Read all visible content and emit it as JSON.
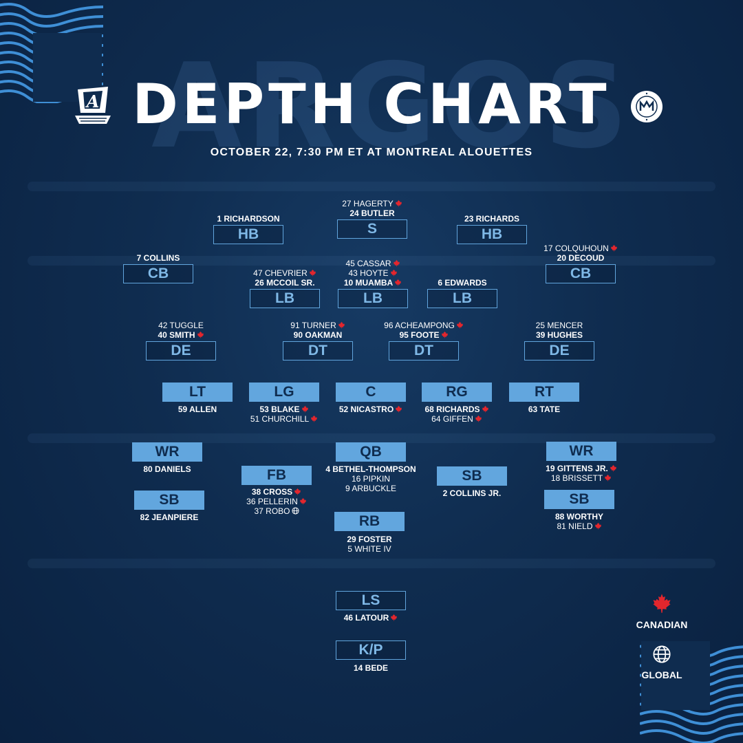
{
  "header": {
    "ghost_text": "ARGOS",
    "title": "DEPTH CHART",
    "subtitle": "OCTOBER 22, 7:30 PM ET AT MONTREAL ALOUETTES",
    "right_logo_text": "MONTREAL ALOUETTES"
  },
  "colors": {
    "accent": "#62a6de",
    "background": "#0f2c4f",
    "canadian_leaf": "#e3262d"
  },
  "defense": {
    "hb_left": {
      "label": "HB",
      "players": [
        {
          "text": "1 RICHARDSON",
          "starter": true,
          "flag": ""
        }
      ]
    },
    "safety": {
      "label": "S",
      "players": [
        {
          "text": "27 HAGERTY",
          "starter": false,
          "flag": "canadian"
        },
        {
          "text": "24 BUTLER",
          "starter": true,
          "flag": ""
        }
      ]
    },
    "hb_right": {
      "label": "HB",
      "players": [
        {
          "text": "23 RICHARDS",
          "starter": true,
          "flag": ""
        }
      ]
    },
    "cb_left": {
      "label": "CB",
      "players": [
        {
          "text": "7 COLLINS",
          "starter": true,
          "flag": ""
        }
      ]
    },
    "lb_left": {
      "label": "LB",
      "players": [
        {
          "text": "47 CHEVRIER",
          "starter": false,
          "flag": "canadian"
        },
        {
          "text": "26 MCCOIL SR.",
          "starter": true,
          "flag": ""
        }
      ]
    },
    "lb_middle": {
      "label": "LB",
      "players": [
        {
          "text": "45 CASSAR",
          "starter": false,
          "flag": "canadian"
        },
        {
          "text": "43 HOYTE",
          "starter": false,
          "flag": "canadian"
        },
        {
          "text": "10 MUAMBA",
          "starter": true,
          "flag": "canadian"
        }
      ]
    },
    "lb_right": {
      "label": "LB",
      "players": [
        {
          "text": "6 EDWARDS",
          "starter": true,
          "flag": ""
        }
      ]
    },
    "cb_right": {
      "label": "CB",
      "players": [
        {
          "text": "17 COLQUHOUN",
          "starter": false,
          "flag": "canadian"
        },
        {
          "text": "20 DECOUD",
          "starter": true,
          "flag": ""
        }
      ]
    },
    "de_left": {
      "label": "DE",
      "players": [
        {
          "text": "42 TUGGLE",
          "starter": false,
          "flag": ""
        },
        {
          "text": "40 SMITH",
          "starter": true,
          "flag": "canadian"
        }
      ]
    },
    "dt_left": {
      "label": "DT",
      "players": [
        {
          "text": "91 TURNER",
          "starter": false,
          "flag": "canadian"
        },
        {
          "text": "90 OAKMAN",
          "starter": true,
          "flag": ""
        }
      ]
    },
    "dt_right": {
      "label": "DT",
      "players": [
        {
          "text": "96 ACHEAMPONG",
          "starter": false,
          "flag": "canadian"
        },
        {
          "text": "95 FOOTE",
          "starter": true,
          "flag": "canadian"
        }
      ]
    },
    "de_right": {
      "label": "DE",
      "players": [
        {
          "text": "25 MENCER",
          "starter": false,
          "flag": ""
        },
        {
          "text": "39 HUGHES",
          "starter": true,
          "flag": ""
        }
      ]
    }
  },
  "offense": {
    "lt": {
      "label": "LT",
      "players": [
        {
          "text": "59 ALLEN",
          "starter": true,
          "flag": ""
        }
      ]
    },
    "lg": {
      "label": "LG",
      "players": [
        {
          "text": "53 BLAKE",
          "starter": true,
          "flag": "canadian"
        },
        {
          "text": "51 CHURCHILL",
          "starter": false,
          "flag": "canadian"
        }
      ]
    },
    "c": {
      "label": "C",
      "players": [
        {
          "text": "52 NICASTRO",
          "starter": true,
          "flag": "canadian"
        }
      ]
    },
    "rg": {
      "label": "RG",
      "players": [
        {
          "text": "68 RICHARDS",
          "starter": true,
          "flag": "canadian"
        },
        {
          "text": "64 GIFFEN",
          "starter": false,
          "flag": "canadian"
        }
      ]
    },
    "rt": {
      "label": "RT",
      "players": [
        {
          "text": "63 TATE",
          "starter": true,
          "flag": ""
        }
      ]
    },
    "wr_left": {
      "label": "WR",
      "players": [
        {
          "text": "80 DANIELS",
          "starter": true,
          "flag": ""
        }
      ]
    },
    "sb_left": {
      "label": "SB",
      "players": [
        {
          "text": "82 JEANPIERE",
          "starter": true,
          "flag": ""
        }
      ]
    },
    "fb": {
      "label": "FB",
      "players": [
        {
          "text": "38 CROSS",
          "starter": true,
          "flag": "canadian"
        },
        {
          "text": "36 PELLERIN",
          "starter": false,
          "flag": "canadian"
        },
        {
          "text": "37 ROBO",
          "starter": false,
          "flag": "global"
        }
      ]
    },
    "qb": {
      "label": "QB",
      "players": [
        {
          "text": "4 BETHEL-THOMPSON",
          "starter": true,
          "flag": ""
        },
        {
          "text": "16 PIPKIN",
          "starter": false,
          "flag": ""
        },
        {
          "text": "9 ARBUCKLE",
          "starter": false,
          "flag": ""
        }
      ]
    },
    "rb": {
      "label": "RB",
      "players": [
        {
          "text": "29 FOSTER",
          "starter": true,
          "flag": ""
        },
        {
          "text": "5 WHITE IV",
          "starter": false,
          "flag": ""
        }
      ]
    },
    "sb_middle": {
      "label": "SB",
      "players": [
        {
          "text": "2 COLLINS JR.",
          "starter": true,
          "flag": ""
        }
      ]
    },
    "wr_right": {
      "label": "WR",
      "players": [
        {
          "text": "19 GITTENS JR.",
          "starter": true,
          "flag": "canadian"
        },
        {
          "text": "18 BRISSETT",
          "starter": false,
          "flag": "canadian"
        }
      ]
    },
    "sb_right": {
      "label": "SB",
      "players": [
        {
          "text": "88 WORTHY",
          "starter": true,
          "flag": ""
        },
        {
          "text": "81 NIELD",
          "starter": false,
          "flag": "canadian"
        }
      ]
    }
  },
  "special_teams": {
    "ls": {
      "label": "LS",
      "players": [
        {
          "text": "46 LATOUR",
          "starter": true,
          "flag": "canadian"
        }
      ]
    },
    "kp": {
      "label": "K/P",
      "players": [
        {
          "text": "14 BEDE",
          "starter": true,
          "flag": ""
        }
      ]
    }
  },
  "legend": {
    "canadian": "CANADIAN",
    "global": "GLOBAL"
  }
}
